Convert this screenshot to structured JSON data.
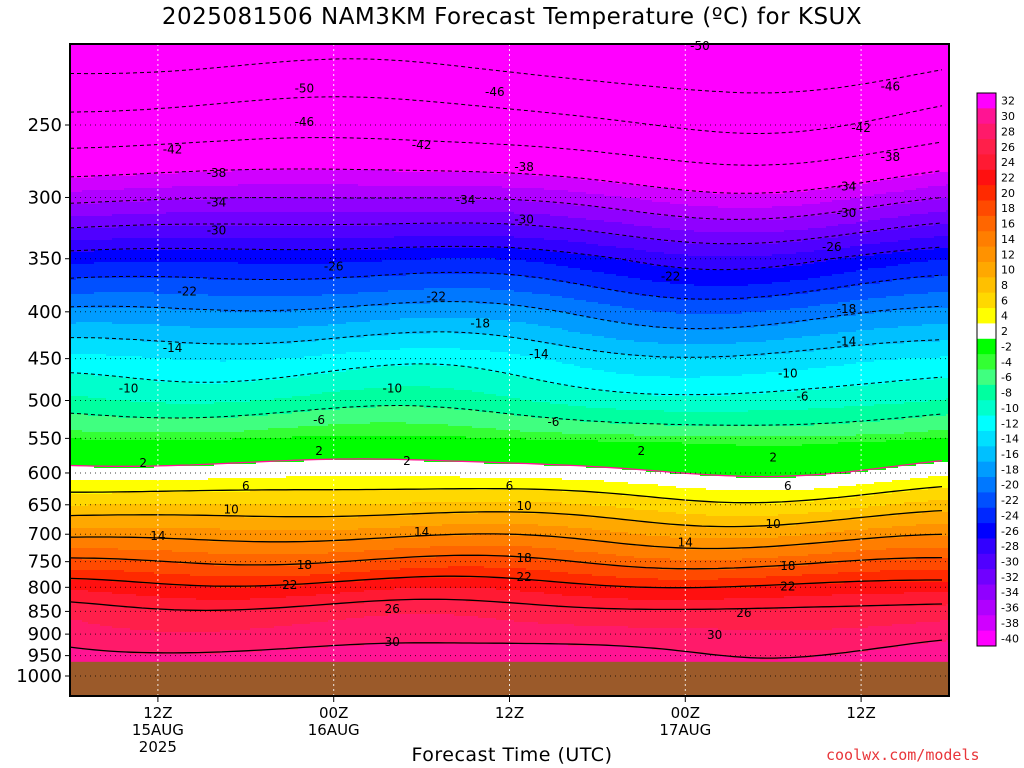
{
  "title": "2025081506 NAM3KM Forecast Temperature (ºC) for KSUX",
  "credit": "coolwx.com/models",
  "chart_data": {
    "type": "heatmap",
    "title": "2025081506 NAM3KM Forecast Temperature (ºC) for KSUX",
    "xlabel": "Forecast Time (UTC)",
    "ylabel": "",
    "y_scale": "log-pressure (hPa), inverted",
    "ylim": [
      1000,
      200
    ],
    "y_ticks": [
      250,
      300,
      350,
      400,
      450,
      500,
      550,
      600,
      650,
      700,
      750,
      800,
      850,
      900,
      950,
      1000
    ],
    "xlim": [
      "2025-08-15 06Z",
      "2025-08-17 18Z"
    ],
    "x_ticks": [
      {
        "time": "2025-08-15 12Z",
        "lines": [
          "12Z",
          "15AUG",
          "2025"
        ]
      },
      {
        "time": "2025-08-16 00Z",
        "lines": [
          "00Z",
          "16AUG"
        ]
      },
      {
        "time": "2025-08-16 12Z",
        "lines": [
          "12Z"
        ]
      },
      {
        "time": "2025-08-17 00Z",
        "lines": [
          "00Z",
          "17AUG"
        ]
      },
      {
        "time": "2025-08-17 12Z",
        "lines": [
          "12Z"
        ]
      }
    ],
    "grid": true,
    "surface_pressure_hPa": 965,
    "colorbar": {
      "levels": [
        32,
        30,
        28,
        26,
        24,
        22,
        20,
        18,
        16,
        14,
        12,
        10,
        8,
        6,
        4,
        2,
        -2,
        -4,
        -6,
        -8,
        -10,
        -12,
        -14,
        -16,
        -18,
        -20,
        -22,
        -24,
        -26,
        -28,
        -30,
        -32,
        -34,
        -36,
        -38,
        -40
      ],
      "colors": [
        "#ff00ff",
        "#ff1493",
        "#ff1a6a",
        "#ff1f4a",
        "#ff1a33",
        "#ff1010",
        "#ff2a00",
        "#ff4a00",
        "#ff6600",
        "#ff7e00",
        "#ff9200",
        "#ffa800",
        "#ffc000",
        "#ffd800",
        "#ffff00",
        "#ffffff",
        "#00ff00",
        "#33ff33",
        "#40ff80",
        "#00ffa0",
        "#00ffcc",
        "#00ffff",
        "#00e0ff",
        "#00c0ff",
        "#009cff",
        "#0078ff",
        "#0050ff",
        "#0028ff",
        "#0000ff",
        "#3200ff",
        "#5000ff",
        "#7000ff",
        "#9000ff",
        "#b000ff",
        "#d000ff",
        "#ff00ff"
      ]
    },
    "contour_labels": [
      {
        "value": -50,
        "time": "2025-08-17 01Z",
        "p": 205
      },
      {
        "value": -50,
        "time": "2025-08-15 22Z",
        "p": 228
      },
      {
        "value": -46,
        "time": "2025-08-16 11Z",
        "p": 230
      },
      {
        "value": -46,
        "time": "2025-08-17 14Z",
        "p": 227
      },
      {
        "value": -46,
        "time": "2025-08-15 22Z",
        "p": 248
      },
      {
        "value": -42,
        "time": "2025-08-15 13Z",
        "p": 266
      },
      {
        "value": -42,
        "time": "2025-08-16 06Z",
        "p": 263
      },
      {
        "value": -42,
        "time": "2025-08-17 12Z",
        "p": 252
      },
      {
        "value": -38,
        "time": "2025-08-15 16Z",
        "p": 282
      },
      {
        "value": -38,
        "time": "2025-08-16 13Z",
        "p": 278
      },
      {
        "value": -38,
        "time": "2025-08-17 14Z",
        "p": 271
      },
      {
        "value": -34,
        "time": "2025-08-15 16Z",
        "p": 304
      },
      {
        "value": -34,
        "time": "2025-08-16 09Z",
        "p": 302
      },
      {
        "value": -34,
        "time": "2025-08-17 11Z",
        "p": 292
      },
      {
        "value": -30,
        "time": "2025-08-15 16Z",
        "p": 326
      },
      {
        "value": -30,
        "time": "2025-08-16 13Z",
        "p": 317
      },
      {
        "value": -30,
        "time": "2025-08-17 11Z",
        "p": 312
      },
      {
        "value": -26,
        "time": "2025-08-16 00Z",
        "p": 357
      },
      {
        "value": -26,
        "time": "2025-08-17 10Z",
        "p": 340
      },
      {
        "value": -22,
        "time": "2025-08-15 14Z",
        "p": 380
      },
      {
        "value": -22,
        "time": "2025-08-16 07Z",
        "p": 385
      },
      {
        "value": -22,
        "time": "2025-08-16 23Z",
        "p": 366
      },
      {
        "value": -18,
        "time": "2025-08-16 10Z",
        "p": 412
      },
      {
        "value": -18,
        "time": "2025-08-17 11Z",
        "p": 397
      },
      {
        "value": -14,
        "time": "2025-08-15 13Z",
        "p": 438
      },
      {
        "value": -14,
        "time": "2025-08-16 14Z",
        "p": 445
      },
      {
        "value": -14,
        "time": "2025-08-17 11Z",
        "p": 431
      },
      {
        "value": -10,
        "time": "2025-08-15 10Z",
        "p": 485
      },
      {
        "value": -10,
        "time": "2025-08-16 04Z",
        "p": 485
      },
      {
        "value": -10,
        "time": "2025-08-17 07Z",
        "p": 467
      },
      {
        "value": -6,
        "time": "2025-08-15 23Z",
        "p": 525
      },
      {
        "value": -6,
        "time": "2025-08-16 15Z",
        "p": 528
      },
      {
        "value": -6,
        "time": "2025-08-17 08Z",
        "p": 495
      },
      {
        "value": 2,
        "time": "2025-08-15 11Z",
        "p": 585
      },
      {
        "value": 2,
        "time": "2025-08-15 23Z",
        "p": 568
      },
      {
        "value": 2,
        "time": "2025-08-16 05Z",
        "p": 582
      },
      {
        "value": 2,
        "time": "2025-08-16 21Z",
        "p": 568
      },
      {
        "value": 2,
        "time": "2025-08-17 06Z",
        "p": 577
      },
      {
        "value": 6,
        "time": "2025-08-15 18Z",
        "p": 620
      },
      {
        "value": 6,
        "time": "2025-08-16 12Z",
        "p": 620
      },
      {
        "value": 6,
        "time": "2025-08-17 07Z",
        "p": 620
      },
      {
        "value": 10,
        "time": "2025-08-15 17Z",
        "p": 658
      },
      {
        "value": 10,
        "time": "2025-08-16 13Z",
        "p": 652
      },
      {
        "value": 10,
        "time": "2025-08-17 06Z",
        "p": 682
      },
      {
        "value": 14,
        "time": "2025-08-15 12Z",
        "p": 703
      },
      {
        "value": 14,
        "time": "2025-08-16 06Z",
        "p": 696
      },
      {
        "value": 14,
        "time": "2025-08-17 00Z",
        "p": 715
      },
      {
        "value": 18,
        "time": "2025-08-15 22Z",
        "p": 756
      },
      {
        "value": 18,
        "time": "2025-08-16 13Z",
        "p": 743
      },
      {
        "value": 18,
        "time": "2025-08-17 07Z",
        "p": 758
      },
      {
        "value": 22,
        "time": "2025-08-15 21Z",
        "p": 795
      },
      {
        "value": 22,
        "time": "2025-08-16 13Z",
        "p": 780
      },
      {
        "value": 22,
        "time": "2025-08-17 07Z",
        "p": 798
      },
      {
        "value": 26,
        "time": "2025-08-16 04Z",
        "p": 845
      },
      {
        "value": 26,
        "time": "2025-08-17 04Z",
        "p": 853
      },
      {
        "value": 30,
        "time": "2025-08-16 04Z",
        "p": 918
      },
      {
        "value": 30,
        "time": "2025-08-17 02Z",
        "p": 902
      }
    ]
  }
}
